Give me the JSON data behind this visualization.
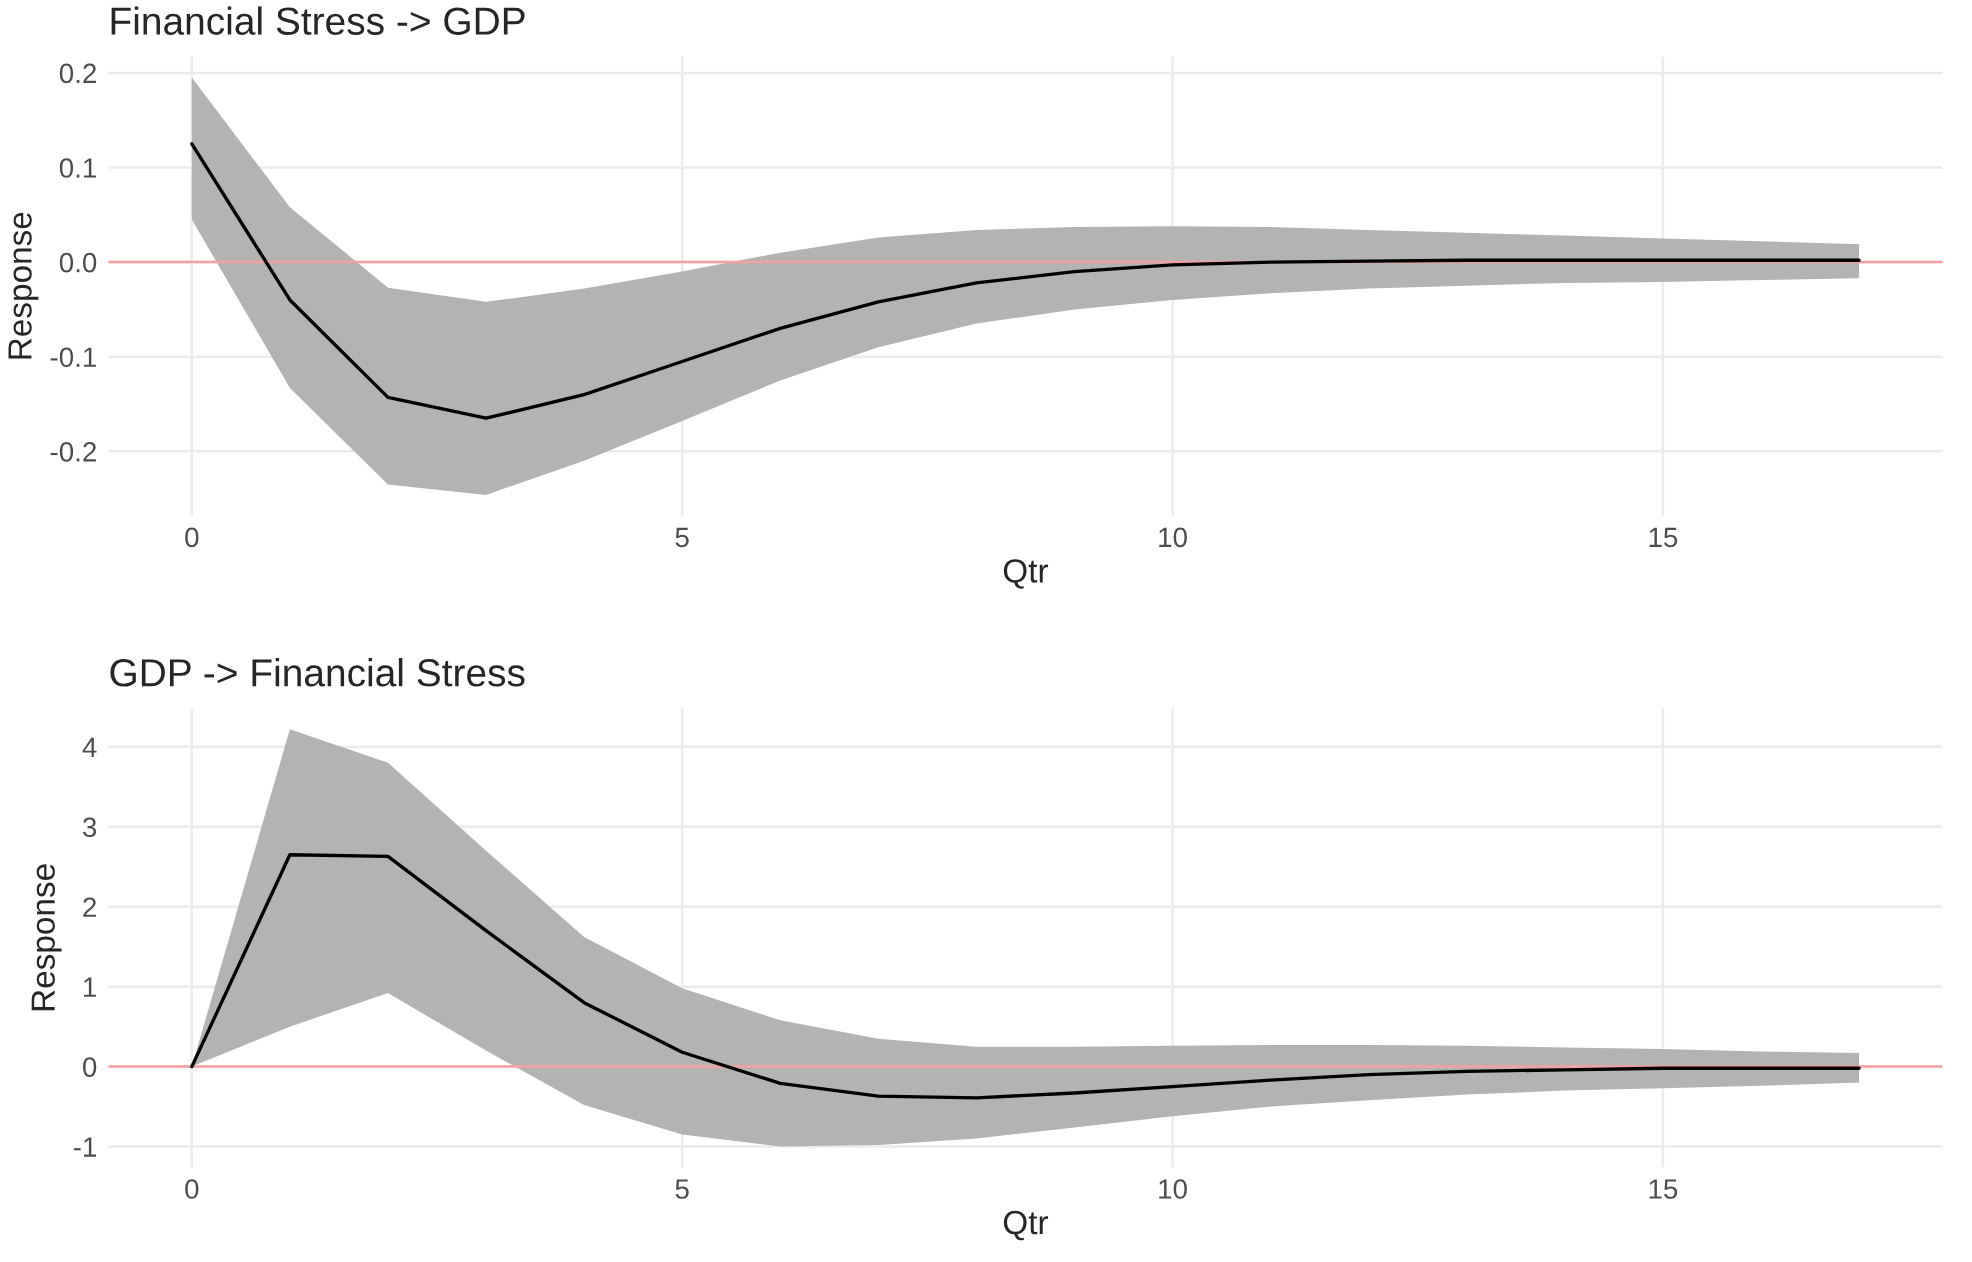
{
  "chart_data": [
    {
      "type": "line",
      "title": "Financial Stress -> GDP",
      "xlabel": "Qtr",
      "ylabel": "Response",
      "x": [
        0,
        1,
        2,
        3,
        4,
        5,
        6,
        7,
        8,
        9,
        10,
        11,
        12,
        13,
        14,
        15,
        16,
        17
      ],
      "series": [
        {
          "color": "#000000",
          "values": [
            0.125,
            -0.04,
            -0.143,
            -0.165,
            -0.14,
            -0.105,
            -0.07,
            -0.042,
            -0.022,
            -0.01,
            -0.003,
            0.0,
            0.001,
            0.002,
            0.002,
            0.002,
            0.002,
            0.002
          ],
          "upper": [
            0.195,
            0.058,
            -0.027,
            -0.042,
            -0.028,
            -0.01,
            0.01,
            0.026,
            0.034,
            0.037,
            0.038,
            0.037,
            0.034,
            0.031,
            0.028,
            0.025,
            0.022,
            0.019
          ],
          "lower": [
            0.045,
            -0.133,
            -0.235,
            -0.246,
            -0.21,
            -0.168,
            -0.125,
            -0.09,
            -0.065,
            -0.05,
            -0.04,
            -0.033,
            -0.028,
            -0.025,
            -0.022,
            -0.021,
            -0.019,
            -0.017
          ]
        }
      ],
      "ref_lines": [
        {
          "axis": "y",
          "value": 0,
          "color": "#f4a0a0"
        }
      ],
      "xlim": [
        -0.85,
        17.85
      ],
      "xticks": [
        0,
        5,
        10,
        15
      ],
      "ylim": [
        -0.268,
        0.217
      ],
      "yticks": [
        -0.2,
        -0.1,
        {
          "value": 0,
          "label": "0.0"
        },
        0.1,
        0.2
      ],
      "grid": true
    },
    {
      "type": "line",
      "title": "GDP -> Financial Stress",
      "xlabel": "Qtr",
      "ylabel": "Response",
      "x": [
        0,
        1,
        2,
        3,
        4,
        5,
        6,
        7,
        8,
        9,
        10,
        11,
        12,
        13,
        14,
        15,
        16,
        17
      ],
      "series": [
        {
          "color": "#000000",
          "values": [
            0,
            2.65,
            2.63,
            1.7,
            0.8,
            0.18,
            -0.21,
            -0.37,
            -0.39,
            -0.33,
            -0.25,
            -0.17,
            -0.1,
            -0.06,
            -0.04,
            -0.02,
            -0.02,
            -0.02
          ],
          "upper": [
            0,
            4.22,
            3.8,
            2.7,
            1.62,
            0.98,
            0.58,
            0.35,
            0.25,
            0.25,
            0.26,
            0.27,
            0.27,
            0.26,
            0.24,
            0.22,
            0.19,
            0.17
          ],
          "lower": [
            0,
            0.5,
            0.92,
            0.2,
            -0.48,
            -0.85,
            -1.0,
            -0.98,
            -0.9,
            -0.76,
            -0.62,
            -0.5,
            -0.42,
            -0.35,
            -0.3,
            -0.27,
            -0.24,
            -0.2
          ]
        }
      ],
      "ref_lines": [
        {
          "axis": "y",
          "value": 0,
          "color": "#f4a0a0"
        }
      ],
      "xlim": [
        -0.85,
        17.85
      ],
      "xticks": [
        0,
        5,
        10,
        15
      ],
      "ylim": [
        -1.26,
        4.48
      ],
      "yticks": [
        -1,
        0,
        1,
        2,
        3,
        4
      ],
      "grid": true
    }
  ]
}
